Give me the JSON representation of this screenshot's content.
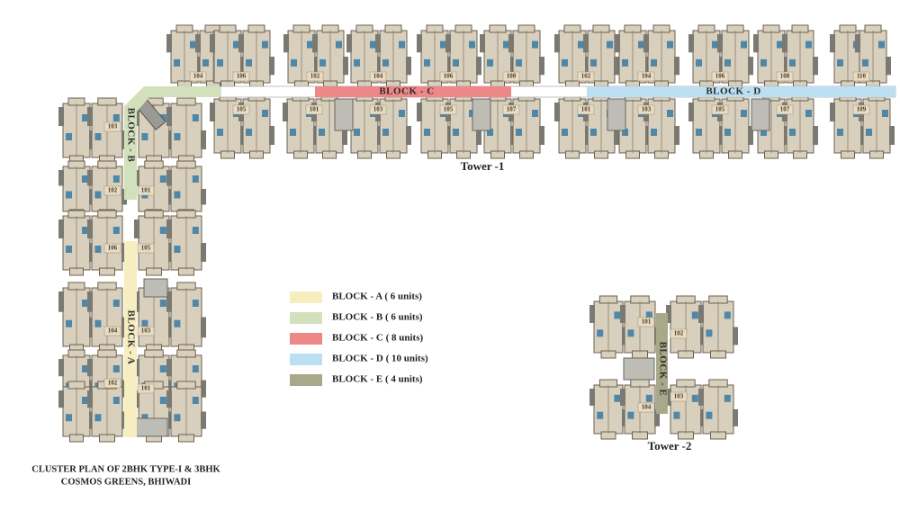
{
  "block_labels": [
    "BLOCK - A",
    "BLOCK - B",
    "BLOCK - C",
    "BLOCK - D",
    "BLOCK - E"
  ],
  "units": {
    "tower1_top": [
      "104",
      "106",
      "102",
      "104",
      "106",
      "108",
      "102",
      "104",
      "106",
      "108",
      "110"
    ],
    "tower1_bottom": [
      "105",
      "101",
      "103",
      "105",
      "107",
      "101",
      "103",
      "105",
      "107",
      "109"
    ],
    "block_b": [
      "103",
      "102",
      "101",
      "106",
      "105"
    ],
    "block_a": [
      "104",
      "103",
      "102",
      "101"
    ],
    "block_e": [
      "101",
      "102",
      "103",
      "104"
    ]
  },
  "legend": [
    {
      "label": "BLOCK - A ( 6 units)",
      "color": "#f6edc0"
    },
    {
      "label": "BLOCK - B ( 6 units)",
      "color": "#d3e0bc"
    },
    {
      "label": "BLOCK - C ( 8 units)",
      "color": "#ee8787"
    },
    {
      "label": "BLOCK - D ( 10 units)",
      "color": "#bcdff1"
    },
    {
      "label": "BLOCK - E ( 4 units)",
      "color": "#a8a88a"
    }
  ],
  "towers": [
    "Tower -1",
    "Tower -2"
  ],
  "caption": [
    "CLUSTER PLAN OF 2BHK TYPE-I & 3BHK",
    "COSMOS GREENS, BHIWADI"
  ]
}
